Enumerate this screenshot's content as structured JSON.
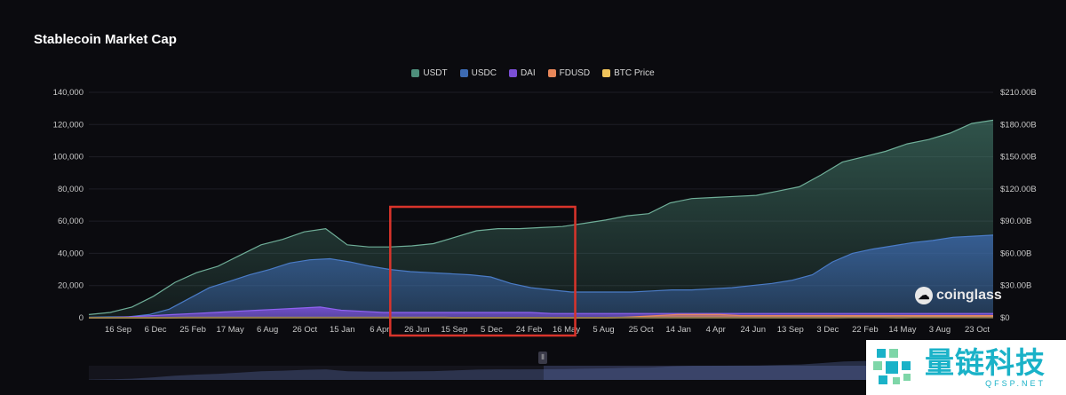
{
  "page_title": "Stablecoin Market Cap",
  "legend": [
    {
      "label": "USDT",
      "color": "#4e8f7c"
    },
    {
      "label": "USDC",
      "color": "#3d6bb3"
    },
    {
      "label": "DAI",
      "color": "#7b4fd6"
    },
    {
      "label": "FDUSD",
      "color": "#e8875a"
    },
    {
      "label": "BTC Price",
      "color": "#f0c35a"
    }
  ],
  "watermark": "coinglass",
  "brand": {
    "name": "量链科技",
    "url": "QFSP.NET"
  },
  "navigator_handle": "⦀",
  "chart_data": {
    "type": "area",
    "title": "Stablecoin Market Cap",
    "x_labels": [
      "16 Sep",
      "6 Dec",
      "25 Feb",
      "17 May",
      "6 Aug",
      "26 Oct",
      "15 Jan",
      "6 Apr",
      "26 Jun",
      "15 Sep",
      "5 Dec",
      "24 Feb",
      "16 May",
      "5 Aug",
      "25 Oct",
      "14 Jan",
      "4 Apr",
      "24 Jun",
      "13 Sep",
      "3 Dec",
      "22 Feb",
      "14 May",
      "3 Aug",
      "23 Oct"
    ],
    "y_left": {
      "ticks": [
        "0",
        "20,000",
        "40,000",
        "60,000",
        "80,000",
        "100,000",
        "120,000",
        "140,000"
      ],
      "range": [
        0,
        140000
      ]
    },
    "y_right": {
      "ticks": [
        "$0",
        "$30.00B",
        "$60.00B",
        "$90.00B",
        "$120.00B",
        "$150.00B",
        "$180.00B",
        "$210.00B"
      ],
      "range": [
        0,
        210
      ]
    },
    "legend_position": "top-center",
    "highlight_box": {
      "from_label": "6 Apr",
      "to_label": "16 May",
      "color": "#d9342b"
    },
    "series": [
      {
        "name": "USDT",
        "axis": "right",
        "color": "#4e8f7c",
        "values": [
          3,
          5,
          10,
          20,
          33,
          42,
          48,
          58,
          68,
          73,
          80,
          83,
          68,
          66,
          66,
          67,
          69,
          75,
          81,
          83,
          83,
          84,
          85,
          88,
          91,
          95,
          97,
          107,
          111,
          112,
          113,
          114,
          118,
          122,
          133,
          145,
          150,
          155,
          162,
          166,
          172,
          181,
          184
        ]
      },
      {
        "name": "USDC",
        "axis": "right",
        "color": "#3d6bb3",
        "values": [
          0.5,
          0.8,
          1,
          3,
          8,
          18,
          28,
          34,
          40,
          45,
          51,
          54,
          55,
          52,
          48,
          45,
          43,
          42,
          41,
          40,
          38,
          32,
          28,
          26,
          24,
          24,
          24,
          24,
          25,
          26,
          26,
          27,
          28,
          30,
          32,
          35,
          40,
          52,
          60,
          64,
          67,
          70,
          72,
          75,
          76,
          77
        ]
      },
      {
        "name": "DAI",
        "axis": "right",
        "color": "#7b4fd6",
        "values": [
          0.1,
          0.3,
          1,
          2,
          3,
          4,
          5,
          6,
          7,
          8,
          9,
          10,
          7,
          6,
          5,
          5,
          5,
          5,
          5,
          5,
          5,
          5,
          4,
          4,
          4,
          4,
          4,
          4,
          4,
          4,
          4,
          4,
          4,
          4,
          4,
          4,
          4,
          4,
          4,
          4,
          4,
          4,
          4,
          4
        ]
      },
      {
        "name": "FDUSD",
        "axis": "right",
        "color": "#e8875a",
        "values": [
          0,
          0,
          0,
          0,
          0,
          0,
          0,
          0,
          0,
          0,
          0,
          0,
          0,
          0,
          0,
          0,
          0,
          0,
          0,
          0,
          0,
          0,
          0,
          0,
          0,
          0,
          1,
          2,
          3,
          3,
          3,
          2,
          2,
          2,
          2,
          2,
          2,
          2,
          2,
          2,
          2,
          2,
          2,
          2
        ]
      },
      {
        "name": "BTC Price",
        "axis": "left",
        "color": "#f0c35a",
        "values": [
          10,
          11,
          11,
          12,
          13,
          18,
          30,
          45,
          62,
          58,
          61,
          50,
          38,
          40,
          45,
          57,
          44,
          60,
          65,
          55,
          44,
          40,
          33,
          24,
          20,
          20,
          20,
          21,
          18,
          18,
          19,
          22,
          27,
          30,
          28,
          28,
          33,
          37,
          43,
          62,
          60,
          57,
          63,
          58,
          67,
          82,
          66,
          95,
          98,
          108,
          80,
          100,
          113,
          109,
          117,
          122,
          90
        ]
      }
    ]
  }
}
